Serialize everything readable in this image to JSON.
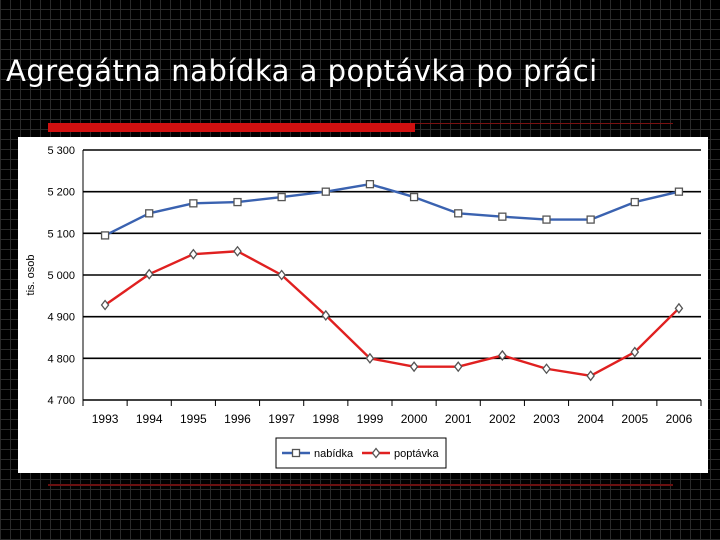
{
  "slide": {
    "title": "Agregátna nabídka a poptávka po práci"
  },
  "colors": {
    "nabidka": "#3a62b0",
    "poptavka": "#e02020",
    "accent": "#d01010"
  },
  "chart_data": {
    "type": "line",
    "title": "",
    "xlabel": "",
    "ylabel": "tis. osob",
    "categories": [
      "1993",
      "1994",
      "1995",
      "1996",
      "1997",
      "1998",
      "1999",
      "2000",
      "2001",
      "2002",
      "2003",
      "2004",
      "2005",
      "2006"
    ],
    "series": [
      {
        "name": "nabídka",
        "marker": "square",
        "values": [
          5095,
          5148,
          5172,
          5175,
          5187,
          5200,
          5218,
          5187,
          5148,
          5140,
          5133,
          5133,
          5175,
          5200
        ]
      },
      {
        "name": "poptávka",
        "marker": "diamond",
        "values": [
          4928,
          5002,
          5050,
          5057,
          5000,
          4903,
          4800,
          4780,
          4780,
          4807,
          4775,
          4758,
          4815,
          4920
        ]
      }
    ],
    "y_ticks": [
      "5 300",
      "5 200",
      "5 100",
      "5 000",
      "4 900",
      "4 800",
      "4 700"
    ],
    "ylim": [
      4700,
      5300
    ],
    "grid": true,
    "legend": "bottom"
  }
}
